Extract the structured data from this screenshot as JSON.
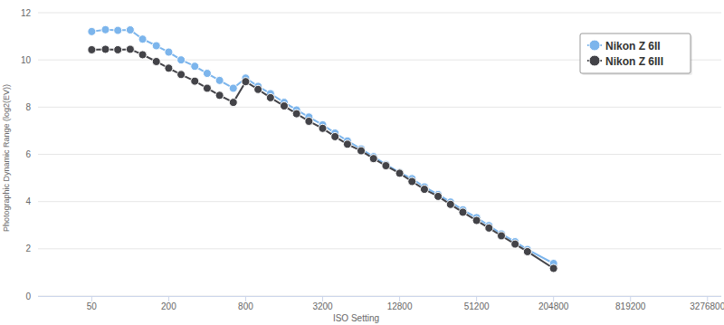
{
  "chart_data": {
    "type": "line",
    "x_label": "ISO Setting",
    "y_label": "Photographic Dynamic Range (log2(EV))",
    "x": [
      50,
      64,
      80,
      100,
      125,
      160,
      200,
      250,
      320,
      400,
      500,
      640,
      800,
      1000,
      1250,
      1600,
      2000,
      2500,
      3200,
      4000,
      5000,
      6400,
      8000,
      10000,
      12800,
      16000,
      20000,
      25600,
      32000,
      40000,
      51200,
      64000,
      80000,
      102400,
      128000,
      204800
    ],
    "series": [
      {
        "name": "Nikon Z 6II",
        "color": "#7cb5ec",
        "marker": "circle",
        "values": [
          11.2,
          11.28,
          11.25,
          11.27,
          10.88,
          10.6,
          10.33,
          10.0,
          9.73,
          9.43,
          9.13,
          8.8,
          9.23,
          8.88,
          8.57,
          8.2,
          7.88,
          7.58,
          7.25,
          6.9,
          6.57,
          6.23,
          5.9,
          5.57,
          5.23,
          4.97,
          4.62,
          4.3,
          3.98,
          3.65,
          3.32,
          2.98,
          2.63,
          2.3,
          1.97,
          1.38
        ]
      },
      {
        "name": "Nikon Z 6III",
        "color": "#434348",
        "marker": "circle",
        "values": [
          10.43,
          10.45,
          10.43,
          10.45,
          10.22,
          9.93,
          9.65,
          9.38,
          9.1,
          8.8,
          8.5,
          8.2,
          9.08,
          8.75,
          8.4,
          8.05,
          7.72,
          7.4,
          7.1,
          6.75,
          6.43,
          6.15,
          5.82,
          5.52,
          5.2,
          4.85,
          4.52,
          4.22,
          3.88,
          3.55,
          3.2,
          2.88,
          2.55,
          2.2,
          1.88,
          1.17
        ]
      }
    ],
    "xlim": [
      19,
      4200000
    ],
    "ylim": [
      0,
      12
    ],
    "xticks": [
      50,
      200,
      800,
      3200,
      12800,
      51200,
      204800,
      819200,
      3276800
    ],
    "yticks": [
      0,
      2,
      4,
      6,
      8,
      10,
      12
    ],
    "log": "x",
    "grid": true,
    "legend": "top-right"
  }
}
